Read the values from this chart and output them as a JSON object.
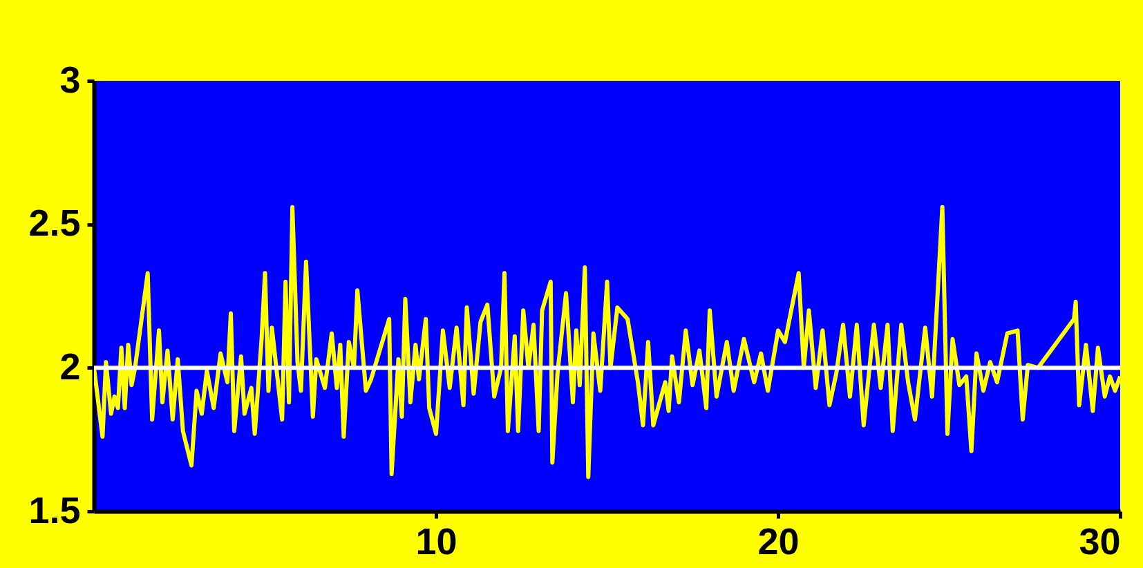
{
  "chart_data": {
    "type": "line",
    "xlim": [
      0,
      30
    ],
    "xticks": [
      10,
      20,
      30
    ],
    "ylim": [
      1.5,
      3
    ],
    "yticks": [
      1.5,
      2,
      2.5,
      3
    ],
    "grid": false,
    "marker": "none",
    "line_style": "solid",
    "ref_lines": [
      {
        "axis": "y",
        "value": 2,
        "color": "#ffffff"
      }
    ],
    "series": [
      {
        "color": "#ffff00",
        "x": [
          0,
          0.25,
          0.35,
          0.5,
          0.6,
          0.7,
          0.8,
          0.9,
          1.0,
          1.1,
          1.2,
          1.57,
          1.7,
          1.9,
          2.0,
          2.15,
          2.3,
          2.45,
          2.6,
          2.85,
          3.0,
          3.15,
          3.3,
          3.5,
          3.7,
          3.9,
          4.0,
          4.1,
          4.3,
          4.4,
          4.6,
          4.7,
          4.9,
          5.0,
          5.1,
          5.2,
          5.5,
          5.6,
          5.7,
          5.8,
          5.95,
          6.05,
          6.2,
          6.4,
          6.5,
          6.75,
          6.95,
          7.1,
          7.2,
          7.3,
          7.45,
          7.6,
          7.7,
          7.95,
          8.1,
          8.63,
          8.7,
          8.9,
          9.0,
          9.1,
          9.25,
          9.4,
          9.5,
          9.7,
          9.8,
          10.0,
          10.2,
          10.4,
          10.6,
          10.8,
          10.9,
          11.1,
          11.3,
          11.5,
          11.7,
          11.9,
          12.0,
          12.1,
          12.3,
          12.4,
          12.55,
          12.7,
          12.85,
          13.0,
          13.1,
          13.35,
          13.4,
          13.55,
          13.8,
          14.0,
          14.1,
          14.2,
          14.35,
          14.45,
          14.6,
          14.8,
          15.0,
          15.1,
          15.3,
          15.6,
          15.9,
          16.05,
          16.2,
          16.35,
          16.7,
          16.8,
          16.9,
          17.1,
          17.3,
          17.5,
          17.7,
          17.9,
          18.0,
          18.2,
          18.5,
          18.7,
          19.0,
          19.3,
          19.5,
          19.7,
          20.0,
          20.2,
          20.6,
          20.75,
          20.9,
          21.1,
          21.3,
          21.5,
          21.7,
          21.9,
          22.1,
          22.3,
          22.5,
          22.8,
          23.0,
          23.2,
          23.35,
          23.6,
          23.8,
          24.0,
          24.3,
          24.5,
          24.8,
          24.95,
          25.1,
          25.3,
          25.5,
          25.65,
          25.8,
          26.0,
          26.2,
          26.4,
          26.7,
          27.0,
          27.15,
          27.3,
          27.6,
          28.65,
          28.7,
          28.8,
          29.0,
          29.2,
          29.35,
          29.55,
          29.7,
          29.85,
          30.0
        ],
        "values": [
          2.0,
          1.76,
          2.02,
          1.84,
          1.9,
          1.86,
          2.07,
          1.86,
          2.08,
          1.94,
          2.0,
          2.33,
          1.82,
          2.13,
          1.88,
          2.06,
          1.82,
          2.03,
          1.78,
          1.66,
          1.92,
          1.84,
          1.99,
          1.86,
          2.05,
          1.95,
          2.19,
          1.78,
          2.04,
          1.84,
          1.93,
          1.77,
          2.1,
          2.33,
          1.92,
          2.14,
          1.82,
          2.3,
          1.88,
          2.56,
          2.02,
          1.92,
          2.37,
          1.83,
          2.03,
          1.93,
          2.12,
          1.93,
          2.08,
          1.76,
          2.09,
          2.0,
          2.27,
          1.92,
          1.96,
          2.17,
          1.63,
          2.03,
          1.83,
          2.24,
          1.88,
          2.08,
          1.96,
          2.17,
          1.86,
          1.77,
          2.13,
          1.93,
          2.14,
          1.87,
          2.21,
          1.91,
          2.16,
          2.22,
          1.9,
          2.0,
          2.33,
          1.78,
          2.11,
          1.78,
          2.2,
          2.0,
          2.15,
          1.78,
          2.2,
          2.3,
          1.67,
          1.98,
          2.26,
          1.88,
          2.13,
          1.94,
          2.35,
          1.62,
          2.12,
          1.92,
          2.3,
          2.0,
          2.21,
          2.17,
          1.95,
          1.8,
          2.09,
          1.8,
          1.95,
          1.85,
          2.04,
          1.88,
          2.13,
          1.94,
          2.06,
          1.86,
          2.2,
          1.9,
          2.09,
          1.92,
          2.1,
          1.95,
          2.05,
          1.92,
          2.13,
          2.09,
          2.33,
          2.0,
          2.2,
          1.93,
          2.13,
          1.87,
          1.98,
          2.15,
          1.9,
          2.15,
          1.8,
          2.15,
          1.93,
          2.15,
          1.78,
          2.15,
          1.95,
          1.82,
          2.14,
          1.9,
          2.56,
          1.77,
          2.1,
          1.94,
          1.97,
          1.71,
          2.05,
          1.92,
          2.02,
          1.95,
          2.12,
          2.13,
          1.82,
          2.01,
          2.0,
          2.17,
          2.23,
          1.87,
          2.08,
          1.85,
          2.07,
          1.9,
          1.97,
          1.92,
          1.97
        ]
      }
    ]
  }
}
